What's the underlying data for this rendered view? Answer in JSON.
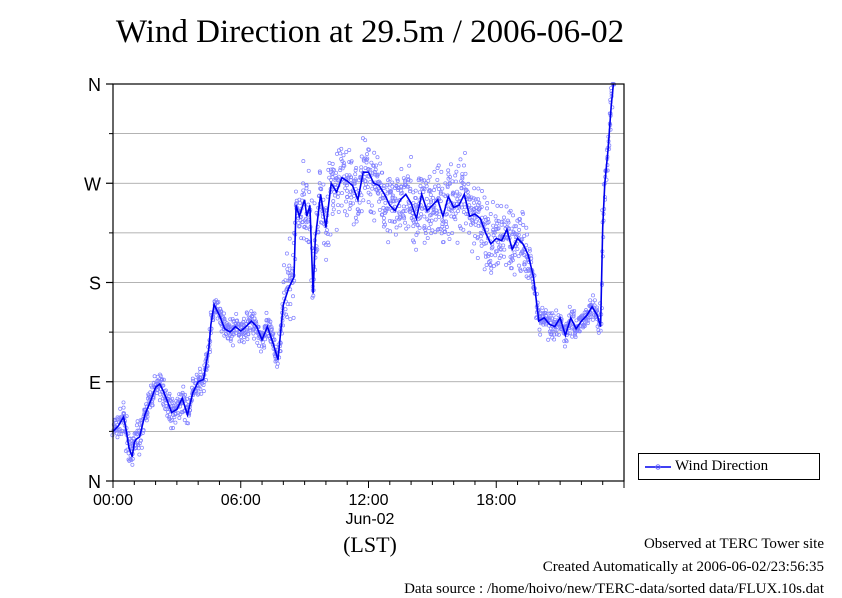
{
  "title": "Wind Direction at 29.5m / 2006-06-02",
  "chart_data": {
    "type": "line+scatter",
    "title": "Wind Direction at 29.5m / 2006-06-02",
    "xlabel": "(LST)",
    "x_date_label": "Jun-02",
    "x_range_hours": [
      0,
      24
    ],
    "x_ticks": [
      {
        "value": 0,
        "label": "00:00"
      },
      {
        "value": 6,
        "label": "06:00"
      },
      {
        "value": 12,
        "label": "12:00"
      },
      {
        "value": 18,
        "label": "18:00"
      }
    ],
    "y_range_degrees": [
      0,
      360
    ],
    "y_ticks": [
      {
        "value": 0,
        "label": "N"
      },
      {
        "value": 90,
        "label": "E"
      },
      {
        "value": 180,
        "label": "S"
      },
      {
        "value": 270,
        "label": "W"
      },
      {
        "value": 360,
        "label": "N"
      }
    ],
    "y_minor_gridlines": [
      45,
      135,
      225,
      315
    ],
    "grid": true,
    "legend": {
      "position": "right-bottom",
      "entries": [
        "Wind Direction"
      ]
    },
    "series": [
      {
        "name": "Wind Direction",
        "style": "line with scattered raw points",
        "color": "#0000ee",
        "scatter_color": "#8080ff",
        "x": [
          0.0,
          0.25,
          0.5,
          0.6,
          0.75,
          0.9,
          1.0,
          1.1,
          1.25,
          1.5,
          1.75,
          2.0,
          2.2,
          2.4,
          2.6,
          2.75,
          3.0,
          3.25,
          3.5,
          3.75,
          4.0,
          4.25,
          4.5,
          4.6,
          4.75,
          5.0,
          5.25,
          5.5,
          5.75,
          6.0,
          6.25,
          6.5,
          6.75,
          7.0,
          7.25,
          7.5,
          7.75,
          8.0,
          8.25,
          8.5,
          8.6,
          8.75,
          9.0,
          9.1,
          9.25,
          9.4,
          9.5,
          9.75,
          10.0,
          10.25,
          10.5,
          10.75,
          11.0,
          11.25,
          11.5,
          11.75,
          12.0,
          12.25,
          12.5,
          12.75,
          13.0,
          13.25,
          13.5,
          13.75,
          14.0,
          14.25,
          14.5,
          14.75,
          15.0,
          15.25,
          15.5,
          15.75,
          16.0,
          16.25,
          16.5,
          16.75,
          17.0,
          17.25,
          17.5,
          17.75,
          18.0,
          18.25,
          18.5,
          18.75,
          19.0,
          19.25,
          19.5,
          19.75,
          20.0,
          20.25,
          20.5,
          20.75,
          21.0,
          21.25,
          21.5,
          21.75,
          22.0,
          22.25,
          22.5,
          22.75,
          22.9,
          23.0,
          23.1,
          23.25,
          23.4,
          23.5
        ],
        "y": [
          45,
          50,
          58,
          48,
          30,
          22,
          35,
          38,
          40,
          60,
          72,
          85,
          88,
          80,
          70,
          62,
          65,
          75,
          60,
          80,
          90,
          92,
          120,
          142,
          160,
          150,
          138,
          135,
          140,
          136,
          140,
          145,
          140,
          128,
          140,
          126,
          110,
          160,
          175,
          185,
          250,
          240,
          255,
          240,
          250,
          170,
          220,
          260,
          230,
          270,
          262,
          275,
          272,
          268,
          255,
          280,
          280,
          270,
          268,
          260,
          250,
          245,
          255,
          260,
          252,
          238,
          260,
          245,
          250,
          255,
          240,
          258,
          248,
          250,
          260,
          240,
          242,
          238,
          225,
          215,
          220,
          218,
          228,
          210,
          220,
          215,
          205,
          185,
          145,
          148,
          142,
          140,
          148,
          132,
          148,
          138,
          145,
          150,
          158,
          150,
          140,
          230,
          270,
          300,
          340,
          360
        ]
      }
    ]
  },
  "legend": {
    "label": "Wind Direction"
  },
  "footer": {
    "line1": "Observed at TERC Tower site",
    "line2": "Created Automatically at 2006-06-02/23:56:35",
    "line3": "Data source : /home/hoivo/new/TERC-data/sorted  data/FLUX.10s.dat"
  },
  "colors": {
    "line": "#0000ee",
    "scatter": "#8080ff",
    "grid": "#9a9a9a",
    "axis": "#000000"
  }
}
